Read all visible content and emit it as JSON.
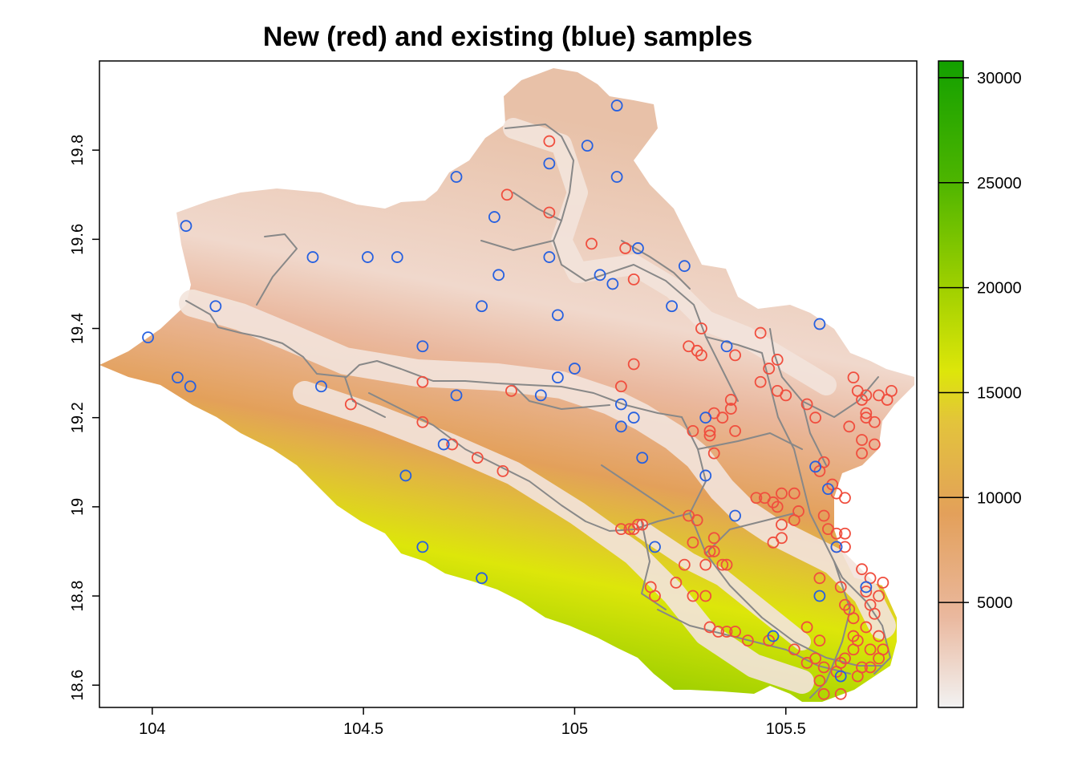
{
  "title": "New (red) and existing (blue) samples",
  "chart_data": {
    "type": "map",
    "title": "New (red) and existing (blue) samples",
    "xlim": [
      103.875,
      105.81
    ],
    "ylim": [
      18.55,
      20.0
    ],
    "x_ticks": [
      {
        "value": 104,
        "label": "104"
      },
      {
        "value": 104.5,
        "label": "104.5"
      },
      {
        "value": 105,
        "label": "105"
      },
      {
        "value": 105.5,
        "label": "105.5"
      }
    ],
    "y_ticks": [
      {
        "value": 18.6,
        "label": "18.6"
      },
      {
        "value": 18.8,
        "label": "18.8"
      },
      {
        "value": 19.0,
        "label": "19"
      },
      {
        "value": 19.2,
        "label": "19.2"
      },
      {
        "value": 19.4,
        "label": "19.4"
      },
      {
        "value": 19.6,
        "label": "19.6"
      },
      {
        "value": 19.8,
        "label": "19.8"
      }
    ],
    "colorbar": {
      "range": [
        0,
        30800
      ],
      "ticks": [
        {
          "value": 5000,
          "label": "5000"
        },
        {
          "value": 10000,
          "label": "10000"
        },
        {
          "value": 15000,
          "label": "15000"
        },
        {
          "value": 20000,
          "label": "20000"
        },
        {
          "value": 25000,
          "label": "25000"
        },
        {
          "value": 30000,
          "label": "30000"
        }
      ],
      "colors": [
        "#f2f2f2",
        "#eab89e",
        "#e3a05a",
        "#e3c33c",
        "#dde60a",
        "#9fd000",
        "#4bb400",
        "#13a000"
      ]
    },
    "series": [
      {
        "name": "New (red)",
        "color": "#f04e3e",
        "points": [
          [
            104.94,
            19.82
          ],
          [
            104.84,
            19.7
          ],
          [
            104.94,
            19.66
          ],
          [
            105.04,
            19.59
          ],
          [
            105.12,
            19.58
          ],
          [
            105.14,
            19.51
          ],
          [
            105.3,
            19.4
          ],
          [
            105.27,
            19.36
          ],
          [
            105.29,
            19.35
          ],
          [
            105.3,
            19.34
          ],
          [
            105.38,
            19.34
          ],
          [
            105.14,
            19.32
          ],
          [
            105.11,
            19.27
          ],
          [
            104.64,
            19.28
          ],
          [
            104.85,
            19.26
          ],
          [
            104.47,
            19.23
          ],
          [
            104.64,
            19.19
          ],
          [
            104.71,
            19.14
          ],
          [
            104.77,
            19.11
          ],
          [
            104.83,
            19.08
          ],
          [
            105.33,
            19.21
          ],
          [
            105.35,
            19.2
          ],
          [
            105.37,
            19.22
          ],
          [
            105.28,
            19.17
          ],
          [
            105.32,
            19.17
          ],
          [
            105.32,
            19.16
          ],
          [
            105.38,
            19.17
          ],
          [
            105.37,
            19.24
          ],
          [
            105.33,
            19.12
          ],
          [
            105.44,
            19.39
          ],
          [
            105.48,
            19.33
          ],
          [
            105.46,
            19.31
          ],
          [
            105.44,
            19.28
          ],
          [
            105.48,
            19.26
          ],
          [
            105.5,
            19.25
          ],
          [
            105.55,
            19.23
          ],
          [
            105.57,
            19.2
          ],
          [
            105.58,
            19.08
          ],
          [
            105.59,
            19.1
          ],
          [
            105.61,
            19.05
          ],
          [
            105.64,
            19.02
          ],
          [
            105.62,
            19.03
          ],
          [
            105.65,
            19.18
          ],
          [
            105.66,
            19.29
          ],
          [
            105.67,
            19.26
          ],
          [
            105.68,
            19.24
          ],
          [
            105.69,
            19.25
          ],
          [
            105.69,
            19.21
          ],
          [
            105.68,
            19.15
          ],
          [
            105.68,
            19.12
          ],
          [
            105.71,
            19.14
          ],
          [
            105.71,
            19.19
          ],
          [
            105.69,
            19.2
          ],
          [
            105.72,
            19.25
          ],
          [
            105.74,
            19.24
          ],
          [
            105.75,
            19.26
          ],
          [
            105.43,
            19.02
          ],
          [
            105.45,
            19.02
          ],
          [
            105.47,
            19.01
          ],
          [
            105.48,
            19.0
          ],
          [
            105.49,
            19.03
          ],
          [
            105.52,
            19.03
          ],
          [
            105.53,
            18.99
          ],
          [
            105.52,
            18.97
          ],
          [
            105.49,
            18.96
          ],
          [
            105.49,
            18.93
          ],
          [
            105.47,
            18.92
          ],
          [
            105.59,
            18.98
          ],
          [
            105.6,
            18.95
          ],
          [
            105.62,
            18.94
          ],
          [
            105.62,
            18.91
          ],
          [
            105.64,
            18.94
          ],
          [
            105.64,
            18.91
          ],
          [
            105.58,
            18.84
          ],
          [
            105.63,
            18.82
          ],
          [
            105.64,
            18.78
          ],
          [
            105.65,
            18.77
          ],
          [
            105.66,
            18.71
          ],
          [
            105.66,
            18.68
          ],
          [
            105.67,
            18.7
          ],
          [
            105.7,
            18.68
          ],
          [
            105.72,
            18.71
          ],
          [
            105.73,
            18.68
          ],
          [
            105.72,
            18.66
          ],
          [
            105.7,
            18.64
          ],
          [
            105.68,
            18.64
          ],
          [
            105.67,
            18.62
          ],
          [
            105.64,
            18.66
          ],
          [
            105.66,
            18.75
          ],
          [
            105.69,
            18.73
          ],
          [
            105.71,
            18.76
          ],
          [
            105.7,
            18.78
          ],
          [
            105.72,
            18.8
          ],
          [
            105.73,
            18.83
          ],
          [
            105.69,
            18.81
          ],
          [
            105.7,
            18.84
          ],
          [
            105.68,
            18.86
          ],
          [
            105.55,
            18.73
          ],
          [
            105.52,
            18.68
          ],
          [
            105.55,
            18.65
          ],
          [
            105.57,
            18.66
          ],
          [
            105.58,
            18.7
          ],
          [
            105.59,
            18.64
          ],
          [
            105.62,
            18.63
          ],
          [
            105.63,
            18.65
          ],
          [
            105.63,
            18.58
          ],
          [
            105.58,
            18.61
          ],
          [
            105.59,
            18.58
          ],
          [
            105.46,
            18.7
          ],
          [
            105.24,
            18.83
          ],
          [
            105.26,
            18.87
          ],
          [
            105.28,
            18.8
          ],
          [
            105.31,
            18.87
          ],
          [
            105.33,
            18.9
          ],
          [
            105.33,
            18.93
          ],
          [
            105.32,
            18.9
          ],
          [
            105.35,
            18.87
          ],
          [
            105.36,
            18.87
          ],
          [
            105.27,
            18.98
          ],
          [
            105.29,
            18.97
          ],
          [
            105.28,
            18.92
          ],
          [
            105.11,
            18.95
          ],
          [
            105.13,
            18.95
          ],
          [
            105.15,
            18.96
          ],
          [
            105.16,
            18.96
          ],
          [
            105.18,
            18.82
          ],
          [
            105.19,
            18.8
          ],
          [
            105.31,
            18.8
          ],
          [
            105.32,
            18.73
          ],
          [
            105.34,
            18.72
          ],
          [
            105.36,
            18.72
          ],
          [
            105.38,
            18.72
          ],
          [
            105.41,
            18.7
          ],
          [
            105.14,
            18.95
          ]
        ]
      },
      {
        "name": "Existing (blue)",
        "color": "#2660e0",
        "points": [
          [
            105.1,
            19.9
          ],
          [
            105.03,
            19.81
          ],
          [
            104.94,
            19.77
          ],
          [
            104.72,
            19.74
          ],
          [
            105.1,
            19.74
          ],
          [
            104.81,
            19.65
          ],
          [
            104.08,
            19.63
          ],
          [
            104.38,
            19.56
          ],
          [
            104.51,
            19.56
          ],
          [
            104.58,
            19.56
          ],
          [
            104.94,
            19.56
          ],
          [
            105.15,
            19.58
          ],
          [
            105.26,
            19.54
          ],
          [
            104.82,
            19.52
          ],
          [
            105.06,
            19.52
          ],
          [
            105.09,
            19.5
          ],
          [
            104.15,
            19.45
          ],
          [
            104.78,
            19.45
          ],
          [
            104.96,
            19.43
          ],
          [
            105.23,
            19.45
          ],
          [
            103.99,
            19.38
          ],
          [
            104.64,
            19.36
          ],
          [
            104.06,
            19.29
          ],
          [
            104.09,
            19.27
          ],
          [
            104.4,
            19.27
          ],
          [
            104.72,
            19.25
          ],
          [
            104.92,
            19.25
          ],
          [
            104.96,
            19.29
          ],
          [
            105.0,
            19.31
          ],
          [
            105.11,
            19.23
          ],
          [
            105.11,
            19.18
          ],
          [
            105.14,
            19.2
          ],
          [
            105.16,
            19.11
          ],
          [
            105.31,
            19.2
          ],
          [
            105.36,
            19.36
          ],
          [
            105.58,
            19.41
          ],
          [
            105.57,
            19.09
          ],
          [
            105.6,
            19.04
          ],
          [
            105.38,
            18.98
          ],
          [
            105.31,
            19.07
          ],
          [
            105.19,
            18.91
          ],
          [
            105.62,
            18.91
          ],
          [
            105.58,
            18.8
          ],
          [
            105.69,
            18.82
          ],
          [
            105.47,
            18.71
          ],
          [
            105.63,
            18.62
          ],
          [
            104.64,
            18.91
          ],
          [
            104.6,
            19.07
          ],
          [
            104.78,
            18.84
          ],
          [
            104.69,
            19.14
          ]
        ]
      }
    ]
  }
}
